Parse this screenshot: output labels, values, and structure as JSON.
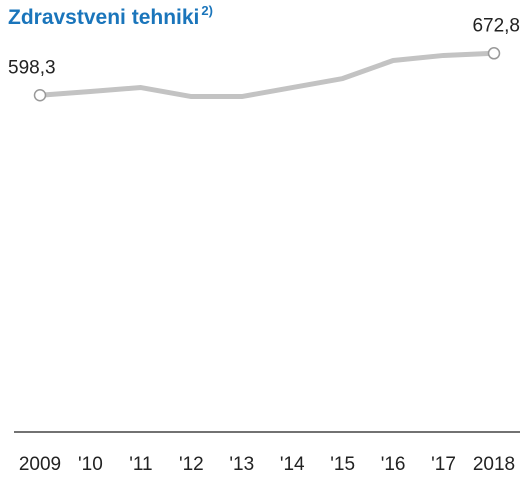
{
  "chart_data": {
    "type": "line",
    "title": "Zdravstveni tehniki",
    "title_note": "2)",
    "categories": [
      "2009",
      "'10",
      "'11",
      "'12",
      "'13",
      "'14",
      "'15",
      "'16",
      "'17",
      "2018"
    ],
    "values": [
      598.3,
      605,
      612,
      596,
      596,
      612,
      628,
      660,
      669,
      672.8
    ],
    "value_labels": [
      "598,3",
      null,
      null,
      null,
      null,
      null,
      null,
      null,
      null,
      "672,8"
    ],
    "color": "#c3c3c3",
    "title_color": "#1a75bb",
    "ylim": [
      0,
      700
    ]
  }
}
